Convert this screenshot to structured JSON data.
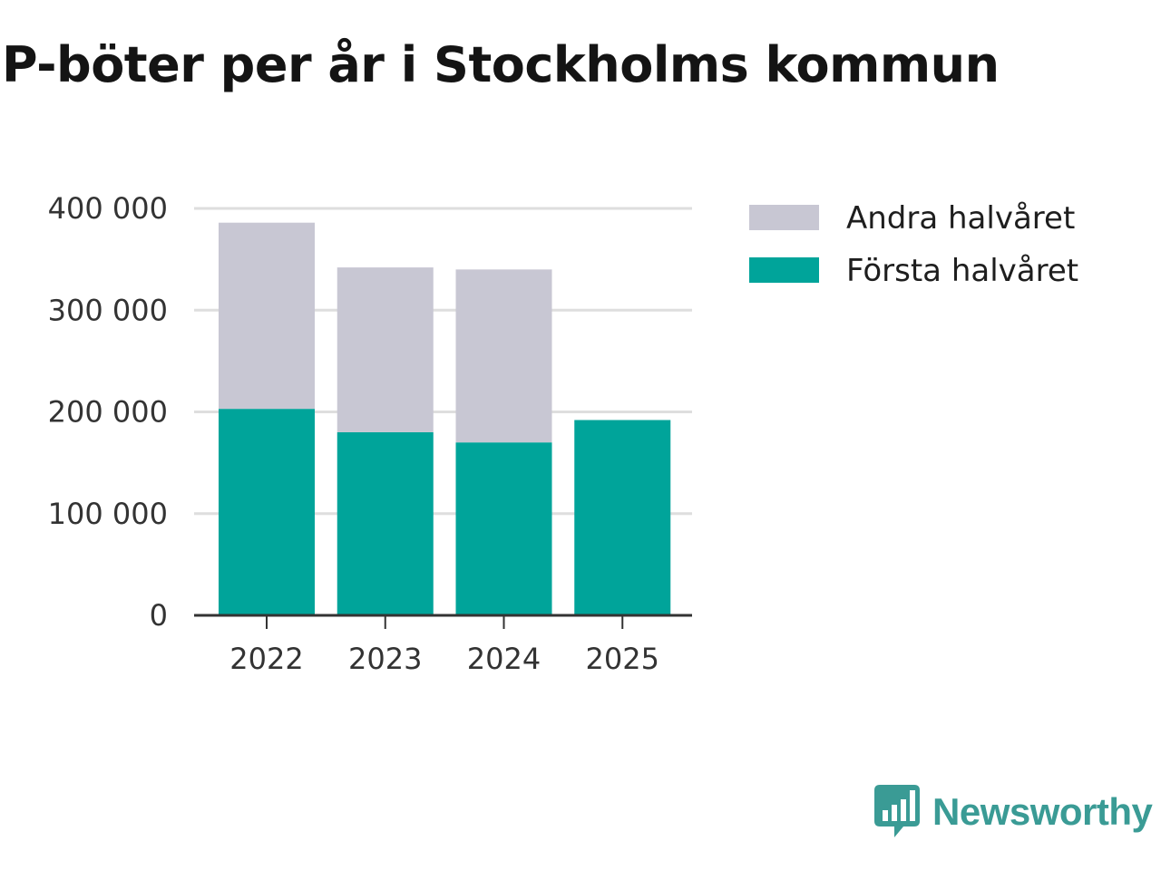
{
  "brand": {
    "name": "Newsworthy",
    "color": "#3a9b95"
  },
  "chart_data": {
    "type": "bar",
    "stacked": true,
    "title": "P-böter per år i Stockholms kommun",
    "xlabel": "",
    "ylabel": "",
    "categories": [
      "2022",
      "2023",
      "2024",
      "2025"
    ],
    "series": [
      {
        "name": "Första halvåret",
        "color": "#00a49a",
        "values": [
          203000,
          180000,
          170000,
          192000
        ]
      },
      {
        "name": "Andra halvåret",
        "color": "#c8c7d3",
        "values": [
          183000,
          162000,
          170000,
          0
        ]
      }
    ],
    "ylim": [
      0,
      400000
    ],
    "yticks": [
      0,
      100000,
      200000,
      300000,
      400000
    ],
    "ytick_labels": [
      "0",
      "100 000",
      "200 000",
      "300 000",
      "400 000"
    ],
    "grid": true,
    "legend": {
      "position": "top-right",
      "order": [
        "Andra halvåret",
        "Första halvåret"
      ]
    }
  }
}
